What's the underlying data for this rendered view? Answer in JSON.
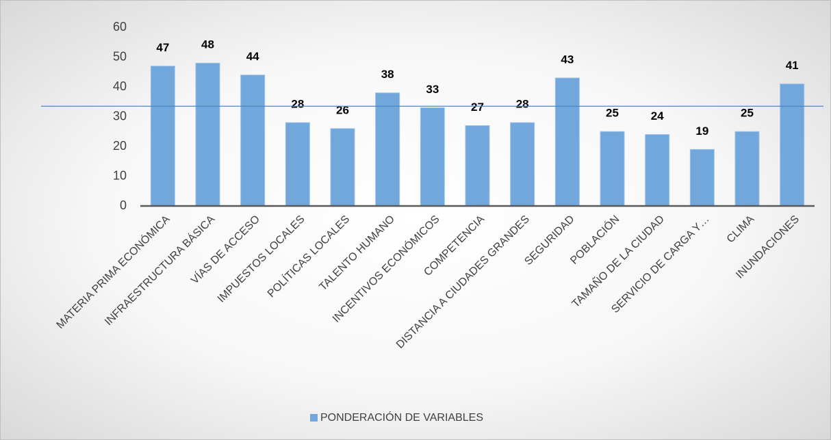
{
  "chart_data": {
    "type": "bar",
    "categories": [
      "MATERIA PRIMA ECONÓMICA",
      "INFRAESTRUCTURA BÁSICA",
      "VÍAS DE ACCESO",
      "IMPUESTOS LOCALES",
      "POLÍTICAS LOCALES",
      "TALENTO HUMANO",
      "INCENTIVOS ECONÓMICOS",
      "COMPETENCIA",
      "DISTANCIA A CIUDADES GRANDES",
      "SEGURIDAD",
      "POBLACIÓN",
      "TAMAÑO DE LA CIUDAD",
      "SERVICIO DE CARGA Y…",
      "CLIMA",
      "INUNDACIONES"
    ],
    "series": [
      {
        "name": "PONDERACIÓN DE VARIABLES",
        "color": "#72a7dc",
        "values": [
          47,
          48,
          44,
          28,
          26,
          38,
          33,
          27,
          28,
          43,
          25,
          24,
          19,
          25,
          41
        ]
      }
    ],
    "ylim": [
      0,
      60
    ],
    "yticks": [
      0,
      10,
      20,
      30,
      40,
      50,
      60
    ],
    "reference_line": 33.5,
    "reference_color": "#4a86c8",
    "grid": false,
    "legend": "bottom"
  }
}
